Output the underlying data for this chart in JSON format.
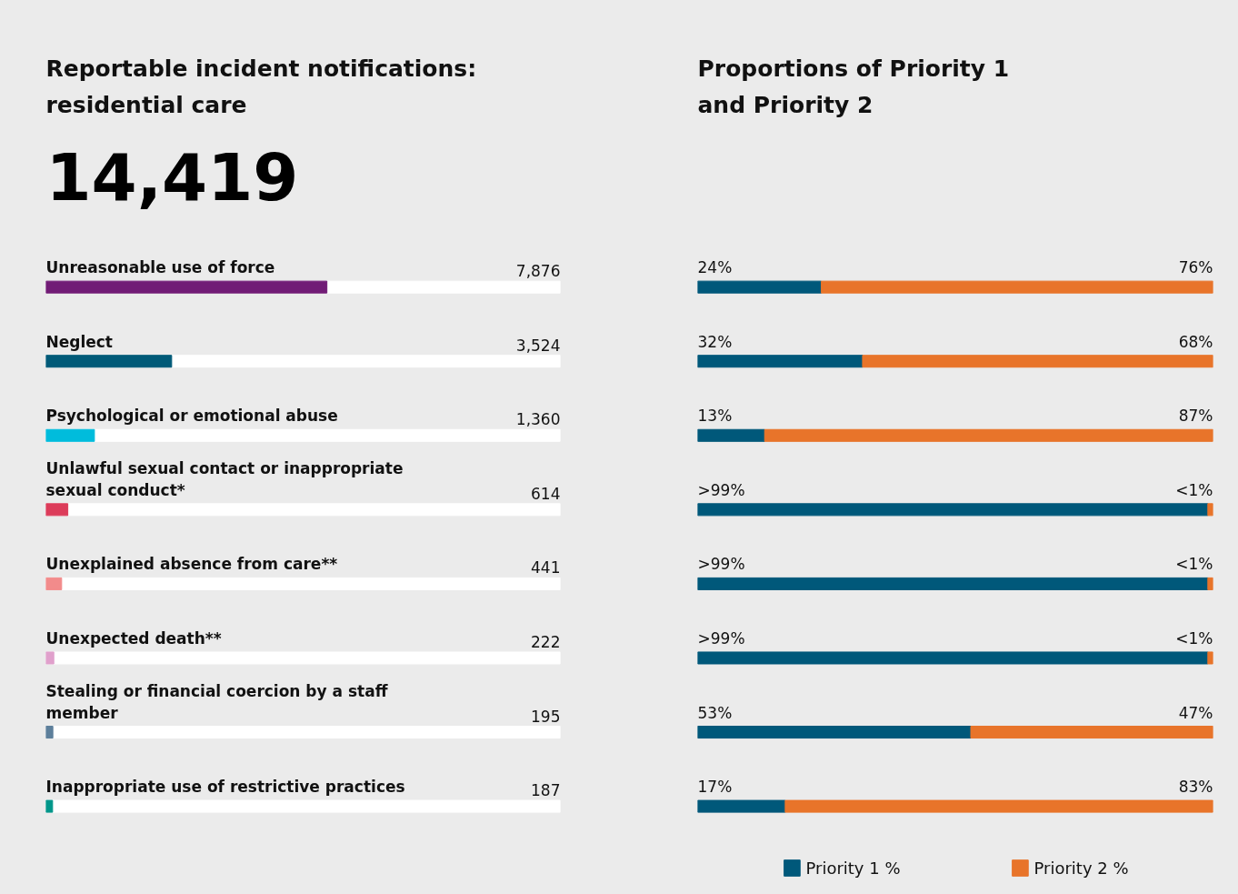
{
  "chart_data": [
    {
      "type": "bar",
      "orientation": "horizontal",
      "title": "Reportable incident notifications: residential care",
      "subtitle": "14,419",
      "categories": [
        "Unreasonable use of force",
        "Neglect",
        "Psychological or emotional abuse",
        "Unlawful sexual contact or inappropriate sexual conduct*",
        "Unexplained absence from care**",
        "Unexpected death**",
        "Stealing or financial coercion by a staff member",
        "Inappropriate use of restrictive practices"
      ],
      "values": [
        7876,
        3524,
        1360,
        614,
        441,
        222,
        195,
        187
      ],
      "colors": [
        "#711c76",
        "#005a78",
        "#00bcdc",
        "#dc3c5a",
        "#f28b8b",
        "#e0a0cc",
        "#5d7f9b",
        "#00968a"
      ],
      "value_labels": [
        "7,876",
        "3,524",
        "1,360",
        "614",
        "441",
        "222",
        "195",
        "187"
      ],
      "tick_labels": false,
      "grid": false
    },
    {
      "type": "bar",
      "orientation": "horizontal",
      "stacked": true,
      "title": "Proportions of Priority 1 and Priority 2",
      "categories": [
        null,
        null,
        null,
        null,
        null,
        null,
        null,
        null
      ],
      "series": [
        {
          "name": "Priority 1 %",
          "color": "#00587a",
          "values": [
            24,
            32,
            13,
            99,
            99,
            99,
            53,
            17
          ],
          "value_labels": [
            "24%",
            "32%",
            "13%",
            ">99%",
            ">99%",
            ">99%",
            "53%",
            "17%"
          ]
        },
        {
          "name": "Priority 2 %",
          "color": "#e8742a",
          "values": [
            76,
            68,
            87,
            1,
            1,
            1,
            47,
            83
          ],
          "value_labels": [
            "76%",
            "68%",
            "87%",
            "<1%",
            "<1%",
            "<1%",
            "47%",
            "83%"
          ]
        }
      ],
      "xlim": [
        0,
        100
      ],
      "legend": "bottom",
      "tick_labels": false,
      "grid": false
    }
  ]
}
